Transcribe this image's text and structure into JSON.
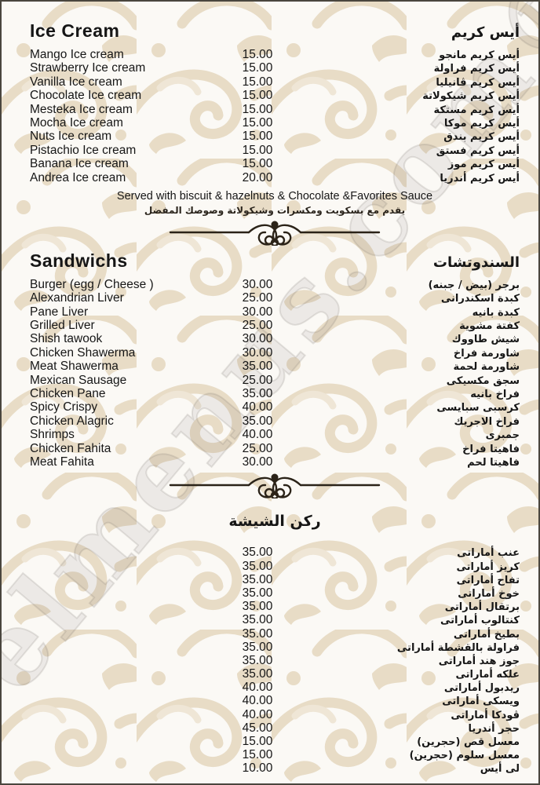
{
  "watermark": "elmenus.com®",
  "colors": {
    "pattern": "#e8dcc6",
    "background": "#fbf9f5",
    "text": "#161616",
    "ornament": "#2b2318"
  },
  "sections": [
    {
      "id": "ice-cream",
      "title_en": "Ice Cream",
      "title_ar": "أيس كريم",
      "note_en": "Served with biscuit & hazelnuts & Chocolate &Favorites Sauce",
      "note_ar": "يقدم مع بسكويت ومكسرات وشيكولاتة وصوصك المفضل",
      "items": [
        {
          "name_en": "Mango Ice cream",
          "price": "15.00",
          "name_ar": "أيس كريم مانجو"
        },
        {
          "name_en": "Strawberry Ice cream",
          "price": "15.00",
          "name_ar": "أيس كريم فراولة"
        },
        {
          "name_en": "Vanilla Ice cream",
          "price": "15.00",
          "name_ar": "أيس كريم ڤانيليا"
        },
        {
          "name_en": "Chocolate Ice cream",
          "price": "15.00",
          "name_ar": "أيس كريم شيكولاتة"
        },
        {
          "name_en": "Mesteka Ice cream",
          "price": "15.00",
          "name_ar": "أيس كريم مستكة"
        },
        {
          "name_en": "Mocha Ice cream",
          "price": "15.00",
          "name_ar": "أيس كريم موكا"
        },
        {
          "name_en": "Nuts Ice cream",
          "price": "15.00",
          "name_ar": "أيس كريم بندق"
        },
        {
          "name_en": "Pistachio Ice cream",
          "price": "15.00",
          "name_ar": "أيس كريم فستق"
        },
        {
          "name_en": "Banana Ice cream",
          "price": "15.00",
          "name_ar": "أيس كريم موز"
        },
        {
          "name_en": "Andrea Ice cream",
          "price": "20.00",
          "name_ar": "أيس كريم أندريا"
        }
      ]
    },
    {
      "id": "sandwichs",
      "title_en": "Sandwichs",
      "title_ar": "السندوتشات",
      "items": [
        {
          "name_en": "Burger (egg / Cheese )",
          "price": "30.00",
          "name_ar": "برجر (بيض / جبنه)"
        },
        {
          "name_en": "Alexandrian Liver",
          "price": "25.00",
          "name_ar": "كبدة اسكندرانى"
        },
        {
          "name_en": "Pane Liver",
          "price": "30.00",
          "name_ar": "كبدة بانيه"
        },
        {
          "name_en": "Grilled Liver",
          "price": "25.00",
          "name_ar": "كفتة مشوية"
        },
        {
          "name_en": "Shish tawook",
          "price": "30.00",
          "name_ar": "شيش طاووك"
        },
        {
          "name_en": "Chicken Shawerma",
          "price": "30.00",
          "name_ar": "شاورمة فراخ"
        },
        {
          "name_en": "Meat Shawerma",
          "price": "35.00",
          "name_ar": "شاورمة لحمة"
        },
        {
          "name_en": "Mexican Sausage",
          "price": "25.00",
          "name_ar": "سجق مكسيكى"
        },
        {
          "name_en": "Chicken Pane",
          "price": "35.00",
          "name_ar": "فراخ بانيه"
        },
        {
          "name_en": "Spicy Crispy",
          "price": "40.00",
          "name_ar": "كرسبى سبايسى"
        },
        {
          "name_en": "Chicken Alagric",
          "price": "35.00",
          "name_ar": "فراخ الاجريك"
        },
        {
          "name_en": "Shrimps",
          "price": "40.00",
          "name_ar": "جمبرى"
        },
        {
          "name_en": "Chicken Fahita",
          "price": "25.00",
          "name_ar": "فاهيتا فراخ"
        },
        {
          "name_en": "Meat Fahita",
          "price": "30.00",
          "name_ar": "فاهيتا لحم"
        }
      ]
    },
    {
      "id": "shisha",
      "title_ar": "ركن الشيشة",
      "items": [
        {
          "name_en": "",
          "price": "35.00",
          "name_ar": "عنب أماراتى"
        },
        {
          "name_en": "",
          "price": "35.00",
          "name_ar": "كريز أماراتى"
        },
        {
          "name_en": "",
          "price": "35.00",
          "name_ar": "تفاح أماراتى"
        },
        {
          "name_en": "",
          "price": "35.00",
          "name_ar": "خوخ أماراتى"
        },
        {
          "name_en": "",
          "price": "35.00",
          "name_ar": "برتقال أماراتى"
        },
        {
          "name_en": "",
          "price": "35.00",
          "name_ar": "كنتالوب أماراتى"
        },
        {
          "name_en": "",
          "price": "35.00",
          "name_ar": "بطيخ أماراتى"
        },
        {
          "name_en": "",
          "price": "35.00",
          "name_ar": "فراولة بالقشطة أماراتى"
        },
        {
          "name_en": "",
          "price": "35.00",
          "name_ar": "جوز هند أماراتى"
        },
        {
          "name_en": "",
          "price": "35.00",
          "name_ar": "علكه أماراتى"
        },
        {
          "name_en": "",
          "price": "40.00",
          "name_ar": "ريدبول أماراتى"
        },
        {
          "name_en": "",
          "price": "40.00",
          "name_ar": "ويسكى أماراتى"
        },
        {
          "name_en": "",
          "price": "40.00",
          "name_ar": "ڤودكا أماراتى"
        },
        {
          "name_en": "",
          "price": "45.00",
          "name_ar": "حجر أندريا"
        },
        {
          "name_en": "",
          "price": "15.00",
          "name_ar": "معسل قص (حجرين)"
        },
        {
          "name_en": "",
          "price": "15.00",
          "name_ar": "معسل سلوم (حجرين)"
        },
        {
          "name_en": "",
          "price": "10.00",
          "name_ar": "لى أيس"
        }
      ]
    }
  ]
}
